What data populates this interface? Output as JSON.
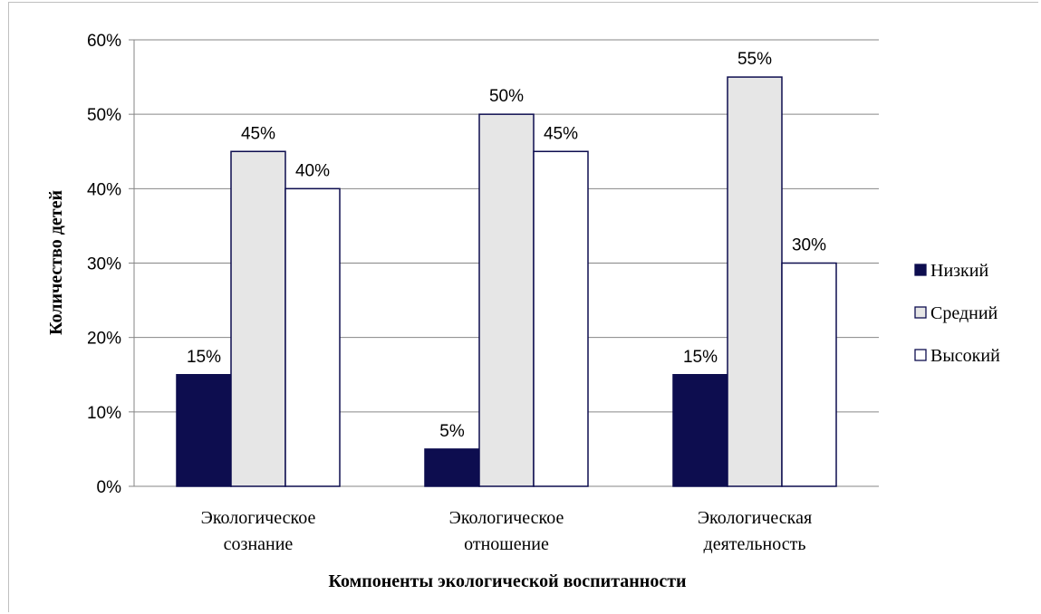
{
  "chart_data": {
    "type": "bar",
    "categories": [
      [
        "Экологическое",
        "сознание"
      ],
      [
        "Экологическое",
        "отношение"
      ],
      [
        "Экологическая",
        "деятельность"
      ]
    ],
    "series": [
      {
        "name": "Низкий",
        "values": [
          15,
          5,
          15
        ],
        "color": "#0d0d4f"
      },
      {
        "name": "Средний",
        "values": [
          45,
          50,
          55
        ],
        "color": "#e6e6e6"
      },
      {
        "name": "Высокий",
        "values": [
          40,
          45,
          30
        ],
        "color": "#ffffff"
      }
    ],
    "bar_stroke": "#0d0d4f",
    "ylim": [
      0,
      60
    ],
    "yticks": [
      "0%",
      "10%",
      "20%",
      "30%",
      "40%",
      "50%",
      "60%"
    ],
    "ylabel": "Количество детей",
    "xlabel": "Компоненты экологической воспитанности",
    "value_suffix": "%",
    "grid": true,
    "legend": "right"
  }
}
